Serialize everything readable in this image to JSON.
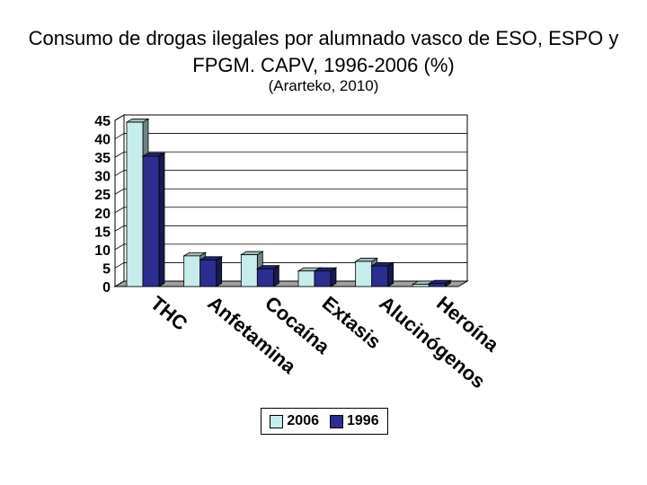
{
  "chart_data": {
    "type": "bar",
    "title": "Consumo de drogas ilegales por alumnado vasco de ESO, ESPO y FPGM. CAPV, 1996-2006 (%)",
    "subtitle": "(Ararteko, 2010)",
    "categories": [
      "THC",
      "Anfetamina",
      "Cocaína",
      "Extasis",
      "Alucinógenos",
      "Heroína"
    ],
    "series": [
      {
        "name": "2006",
        "values": [
          44.5,
          8.3,
          8.6,
          4.2,
          6.8,
          0.6
        ],
        "color": "#c6ecec"
      },
      {
        "name": "1996",
        "values": [
          35.3,
          7.2,
          4.8,
          4.2,
          5.6,
          0.8
        ],
        "color": "#2b2e8e"
      }
    ],
    "yticks": [
      "45",
      "40",
      "35",
      "30",
      "25",
      "20",
      "15",
      "10",
      "5",
      "0"
    ],
    "ylim": [
      0,
      45
    ],
    "grid": true,
    "three_d": true,
    "legend_position": "bottom"
  }
}
